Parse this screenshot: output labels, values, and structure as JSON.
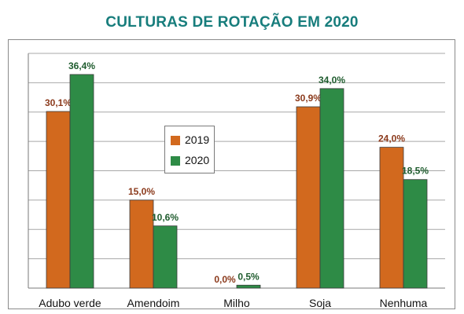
{
  "chart_data": {
    "type": "bar",
    "title": "CULTURAS DE ROTAÇÃO EM 2020",
    "categories": [
      "Adubo verde",
      "Amendoim",
      "Milho",
      "Soja",
      "Nenhuma"
    ],
    "series": [
      {
        "name": "2019",
        "values": [
          30.1,
          15.0,
          0.0,
          30.9,
          24.0
        ],
        "labels": [
          "30,1%",
          "15,0%",
          "0,0%",
          "30,9%",
          "24,0%"
        ]
      },
      {
        "name": "2020",
        "values": [
          36.4,
          10.6,
          0.5,
          34.0,
          18.5
        ],
        "labels": [
          "36,4%",
          "10,6%",
          "0,5%",
          "34,0%",
          "18,5%"
        ]
      }
    ],
    "ylim": [
      0,
      40
    ],
    "grid": true,
    "legend": "center-left",
    "colors": {
      "2019": "#d2691e",
      "2020": "#2e8b46",
      "label_2019": "#8b3a1c",
      "label_2020": "#1f5c2e"
    }
  }
}
